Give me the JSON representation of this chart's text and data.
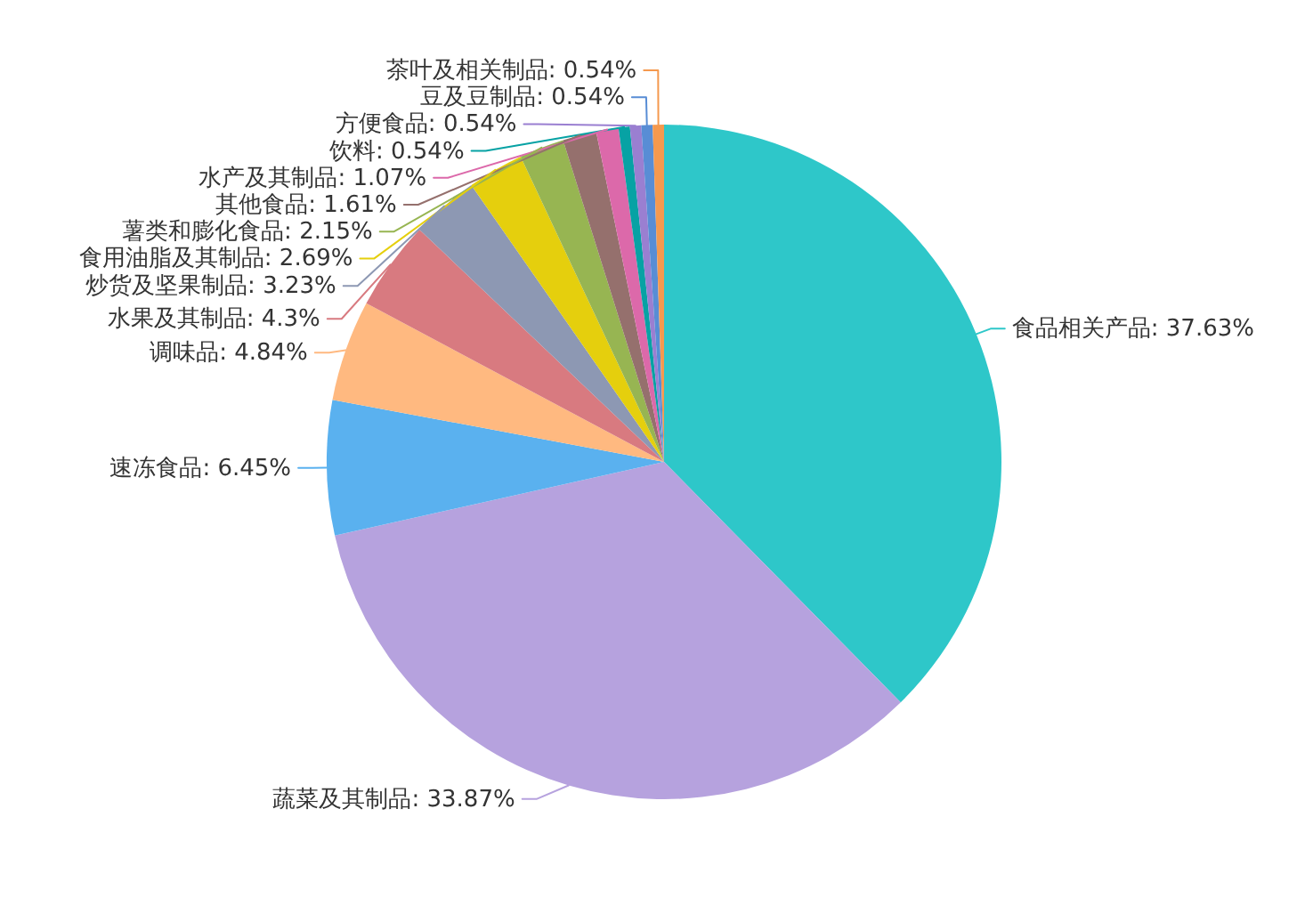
{
  "chart_data": {
    "type": "pie",
    "categories": [
      "食品相关产品",
      "蔬菜及其制品",
      "速冻食品",
      "调味品",
      "水果及其制品",
      "炒货及坚果制品",
      "食用油脂及其制品",
      "薯类和膨化食品",
      "其他食品",
      "水产及其制品",
      "饮料",
      "方便食品",
      "豆及豆制品",
      "茶叶及相关制品"
    ],
    "values": [
      37.63,
      33.87,
      6.45,
      4.84,
      4.3,
      3.23,
      2.69,
      2.15,
      1.61,
      1.07,
      0.54,
      0.54,
      0.54,
      0.54
    ],
    "value_labels": [
      "37.63%",
      "33.87%",
      "6.45%",
      "4.84%",
      "4.3%",
      "3.23%",
      "2.69%",
      "2.15%",
      "1.61%",
      "1.07%",
      "0.54%",
      "0.54%",
      "0.54%",
      "0.54%"
    ],
    "colors": [
      "#2ec7c9",
      "#b6a2de",
      "#5ab1ef",
      "#ffb980",
      "#d87a80",
      "#8d98b3",
      "#e5cf0d",
      "#97b552",
      "#95706d",
      "#dc69aa",
      "#07a2a4",
      "#9a7fd1",
      "#588dd5",
      "#f5994e"
    ]
  }
}
